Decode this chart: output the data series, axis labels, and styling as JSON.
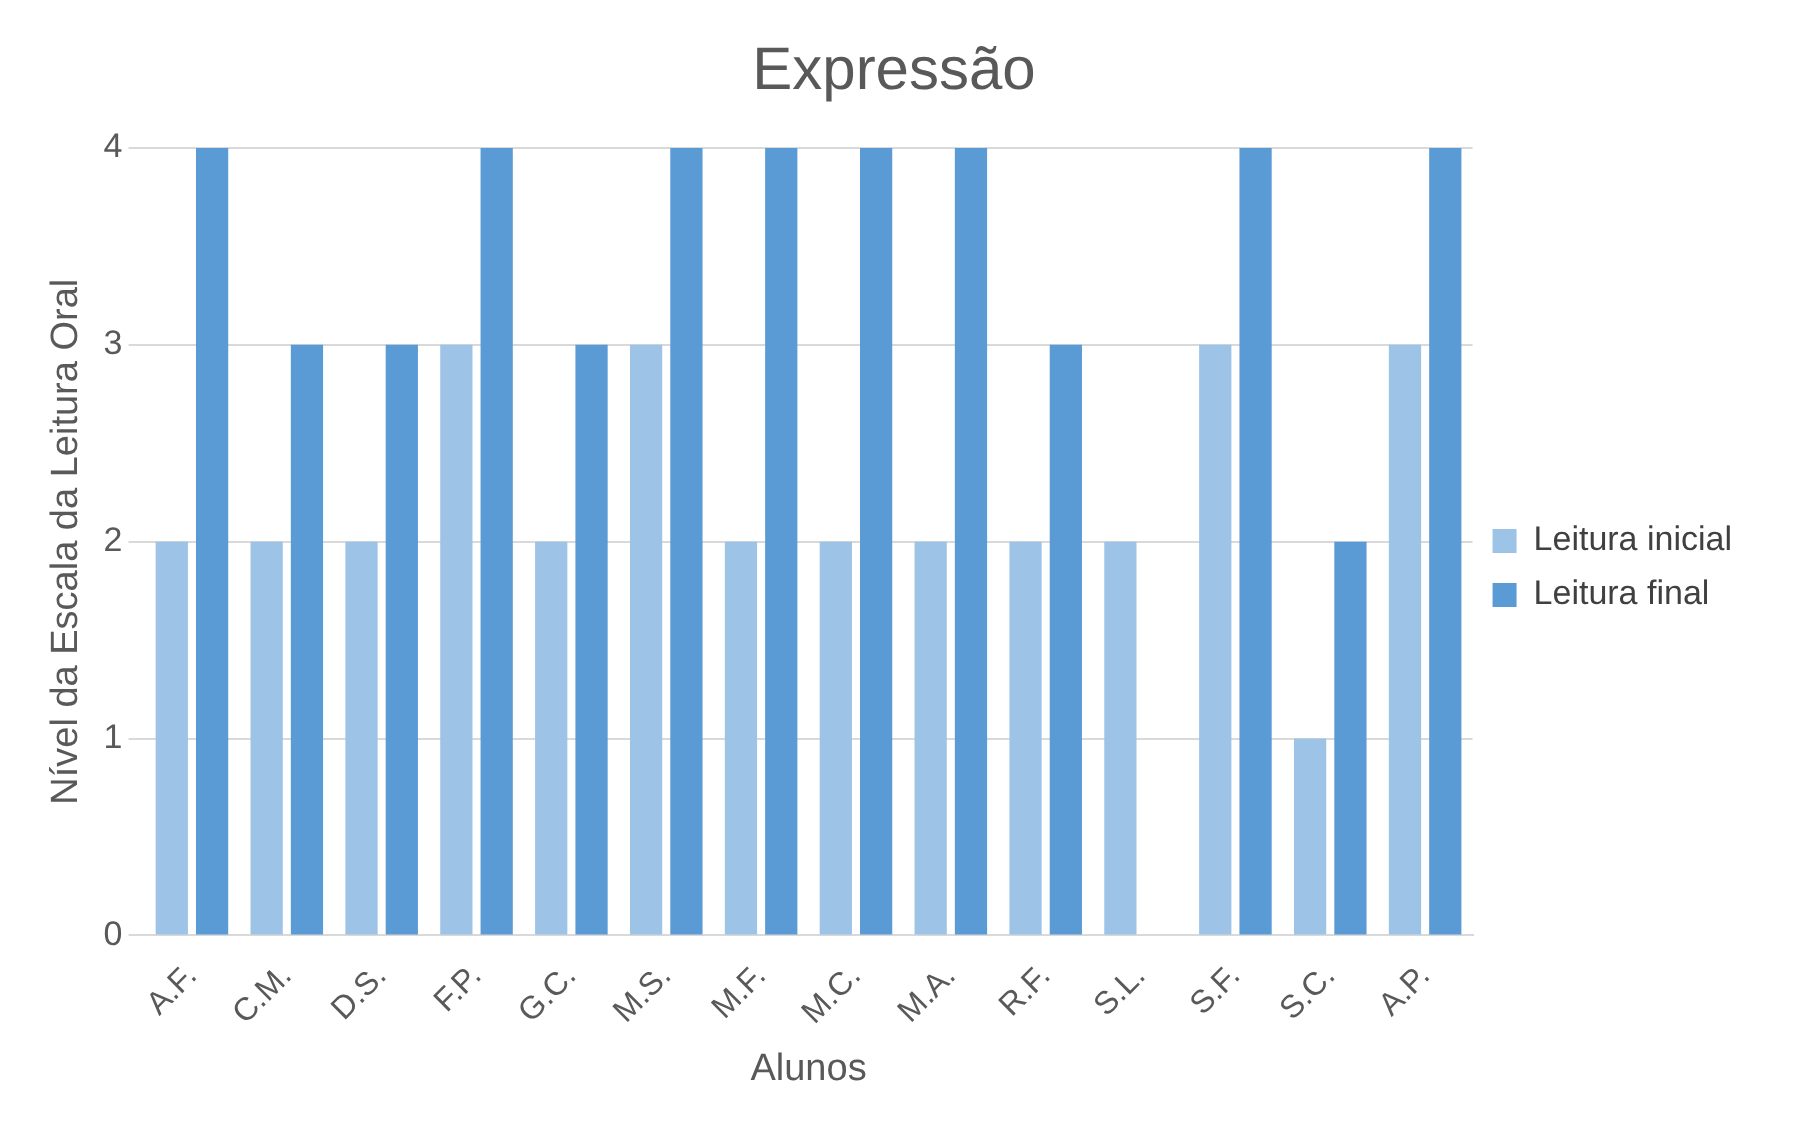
{
  "chart_data": {
    "type": "bar",
    "title": "Expressão",
    "xlabel": "Alunos",
    "ylabel": "Nível da Escala da Leitura Oral",
    "categories": [
      "A.F.",
      "C.M.",
      "D.S.",
      "F.P.",
      "G.C.",
      "M.S.",
      "M.F.",
      "M.C.",
      "M.A.",
      "R.F.",
      "S.L.",
      "S.F.",
      "S.C.",
      "A.P."
    ],
    "series": [
      {
        "name": "Leitura inicial",
        "color": "#9dc3e6",
        "values": [
          2,
          2,
          2,
          3,
          2,
          3,
          2,
          2,
          2,
          2,
          2,
          3,
          1,
          3
        ]
      },
      {
        "name": "Leitura final",
        "color": "#5b9bd5",
        "values": [
          4,
          3,
          3,
          4,
          3,
          4,
          4,
          4,
          4,
          3,
          null,
          4,
          2,
          4
        ]
      }
    ],
    "ylim": [
      0,
      4
    ],
    "yticks": [
      0,
      1,
      2,
      3,
      4
    ],
    "grid": "y",
    "legend": "right"
  }
}
